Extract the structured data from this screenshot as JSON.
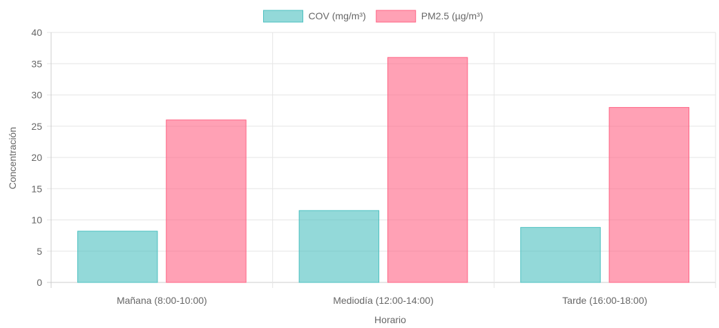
{
  "chart_data": {
    "type": "bar",
    "categories": [
      "Mañana (8:00-10:00)",
      "Mediodía (12:00-14:00)",
      "Tarde (16:00-18:00)"
    ],
    "series": [
      {
        "name": "COV (mg/m³)",
        "values": [
          8.2,
          11.5,
          8.8
        ],
        "color": "#4BC0C0"
      },
      {
        "name": "PM2.5 (µg/m³)",
        "values": [
          26,
          36,
          28
        ],
        "color": "#FF6384"
      }
    ],
    "xlabel": "Horario",
    "ylabel": "Concentración",
    "ylim": [
      0,
      40
    ],
    "yticks": [
      0,
      5,
      10,
      15,
      20,
      25,
      30,
      35,
      40
    ],
    "grid": true,
    "legend_position": "top"
  }
}
